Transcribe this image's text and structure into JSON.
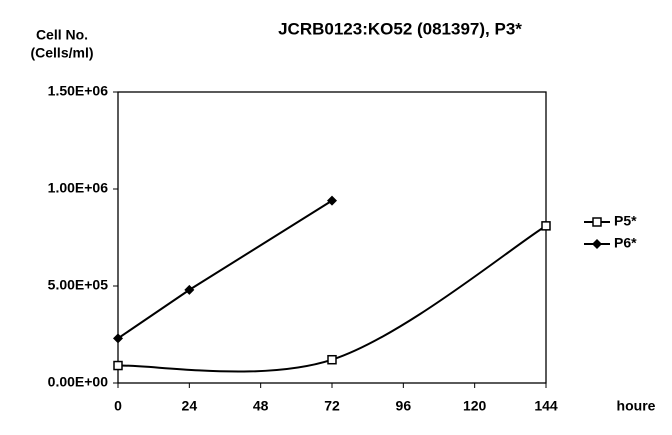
{
  "chart_data": {
    "type": "line",
    "title": "JCRB0123:KO52 (081397), P3*",
    "ylabel_lines": [
      "Cell No.",
      "(Cells/ml)"
    ],
    "xlabel": "houre",
    "xlim": [
      0,
      144
    ],
    "xticks": [
      0,
      24,
      48,
      72,
      96,
      120,
      144
    ],
    "ylim": [
      0,
      1500000
    ],
    "yticks": [
      {
        "value": 0,
        "label": "0.00E+00"
      },
      {
        "value": 500000,
        "label": "5.00E+05"
      },
      {
        "value": 1000000,
        "label": "1.00E+06"
      },
      {
        "value": 1500000,
        "label": "1.50E+06"
      }
    ],
    "grid": false,
    "legend": "right",
    "series": [
      {
        "name": "P5*",
        "color": "#000000",
        "marker": "square",
        "smooth": true,
        "x": [
          0,
          72,
          144
        ],
        "values": [
          90000,
          120000,
          810000
        ]
      },
      {
        "name": "P6*",
        "color": "#000000",
        "marker": "diamond",
        "smooth": false,
        "x": [
          0,
          24,
          72
        ],
        "values": [
          230000,
          480000,
          940000
        ]
      }
    ]
  }
}
